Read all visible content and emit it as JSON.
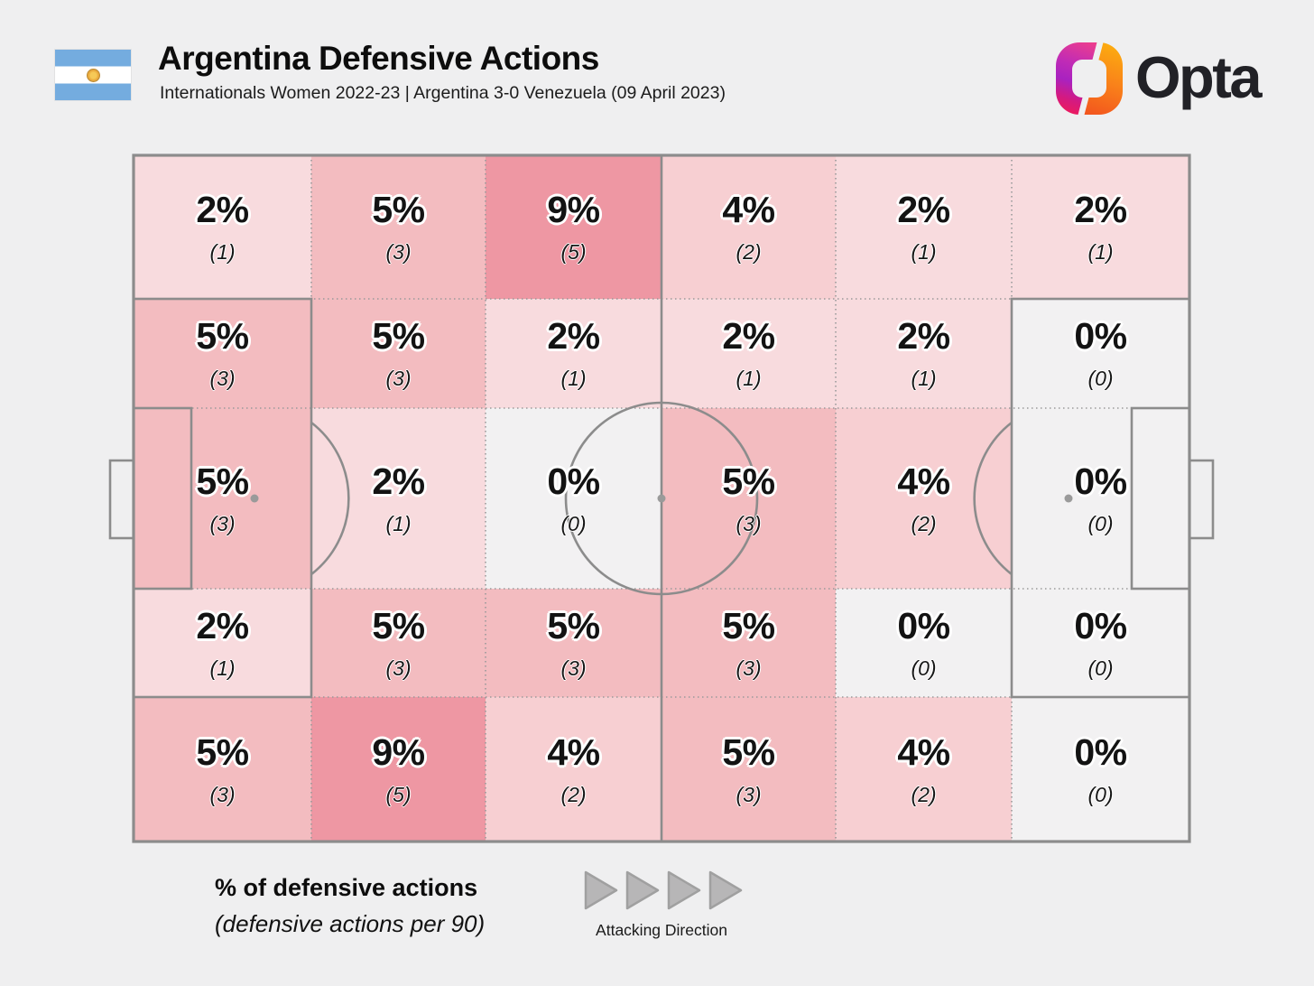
{
  "header": {
    "title": "Argentina Defensive Actions",
    "subtitle": "Internationals Women 2022-23 | Argentina 3-0 Venezuela (09 April 2023)",
    "flag": "argentina"
  },
  "brand": {
    "wordmark": "Opta"
  },
  "chart_data": {
    "type": "heatmap",
    "layout": "football-pitch-zones",
    "title": "Argentina Defensive Actions",
    "subtitle": "Internationals Women 2022-23 | Argentina 3-0 Venezuela (09 April 2023)",
    "grid": {
      "rows": 5,
      "cols": 6
    },
    "attacking_direction": "left-to-right",
    "cells": [
      [
        {
          "pct": "2%",
          "per90": "(1)",
          "count": 1
        },
        {
          "pct": "5%",
          "per90": "(3)",
          "count": 3
        },
        {
          "pct": "9%",
          "per90": "(5)",
          "count": 5
        },
        {
          "pct": "4%",
          "per90": "(2)",
          "count": 2
        },
        {
          "pct": "2%",
          "per90": "(1)",
          "count": 1
        },
        {
          "pct": "2%",
          "per90": "(1)",
          "count": 1
        }
      ],
      [
        {
          "pct": "5%",
          "per90": "(3)",
          "count": 3
        },
        {
          "pct": "5%",
          "per90": "(3)",
          "count": 3
        },
        {
          "pct": "2%",
          "per90": "(1)",
          "count": 1
        },
        {
          "pct": "2%",
          "per90": "(1)",
          "count": 1
        },
        {
          "pct": "2%",
          "per90": "(1)",
          "count": 1
        },
        {
          "pct": "0%",
          "per90": "(0)",
          "count": 0
        }
      ],
      [
        {
          "pct": "5%",
          "per90": "(3)",
          "count": 3
        },
        {
          "pct": "2%",
          "per90": "(1)",
          "count": 1
        },
        {
          "pct": "0%",
          "per90": "(0)",
          "count": 0
        },
        {
          "pct": "5%",
          "per90": "(3)",
          "count": 3
        },
        {
          "pct": "4%",
          "per90": "(2)",
          "count": 2
        },
        {
          "pct": "0%",
          "per90": "(0)",
          "count": 0
        }
      ],
      [
        {
          "pct": "2%",
          "per90": "(1)",
          "count": 1
        },
        {
          "pct": "5%",
          "per90": "(3)",
          "count": 3
        },
        {
          "pct": "5%",
          "per90": "(3)",
          "count": 3
        },
        {
          "pct": "5%",
          "per90": "(3)",
          "count": 3
        },
        {
          "pct": "0%",
          "per90": "(0)",
          "count": 0
        },
        {
          "pct": "0%",
          "per90": "(0)",
          "count": 0
        }
      ],
      [
        {
          "pct": "5%",
          "per90": "(3)",
          "count": 3
        },
        {
          "pct": "9%",
          "per90": "(5)",
          "count": 5
        },
        {
          "pct": "4%",
          "per90": "(2)",
          "count": 2
        },
        {
          "pct": "5%",
          "per90": "(3)",
          "count": 3
        },
        {
          "pct": "4%",
          "per90": "(2)",
          "count": 2
        },
        {
          "pct": "0%",
          "per90": "(0)",
          "count": 0
        }
      ]
    ],
    "color_scale": {
      "0": "#f2f1f2",
      "1": "#f8dbde",
      "2": "#f7cfd2",
      "3": "#f3bcc0",
      "5": "#ee97a3"
    }
  },
  "legend": {
    "title": "% of defensive actions",
    "subtitle": "(defensive actions per 90)",
    "attacking_direction_label": "Attacking Direction",
    "arrow_count": 4
  },
  "colors": {
    "background": "#efeff0",
    "pitch_line": "#8c8c8c",
    "zone_dotted_line": "#9a9a9a",
    "flag_blue": "#74acdf",
    "arrow_gray": "#b7b6b7"
  }
}
